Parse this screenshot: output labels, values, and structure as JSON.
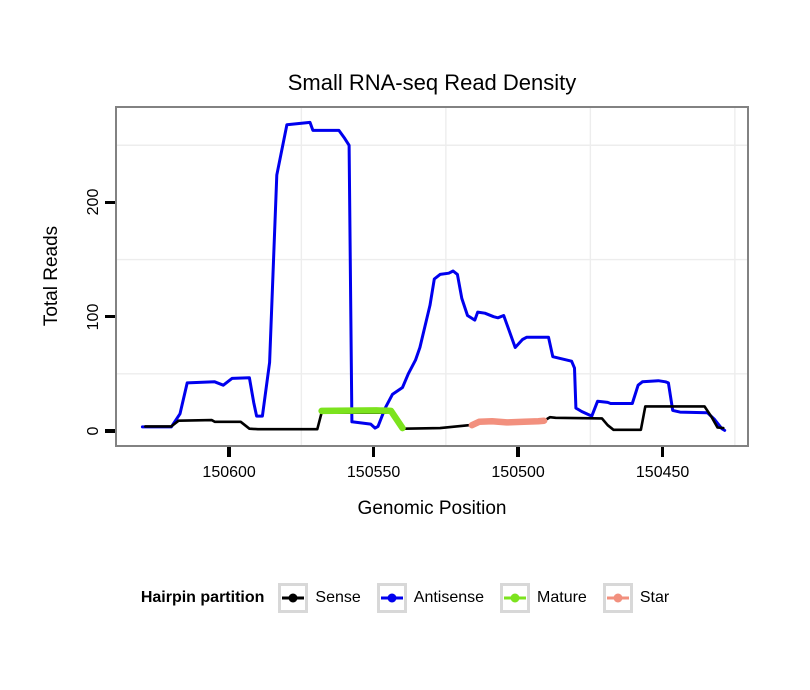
{
  "title": "Small RNA-seq Read Density",
  "axes": {
    "x_label": "Genomic Position",
    "y_label": "Total Reads"
  },
  "legend": {
    "title": "Hairpin partition",
    "items": [
      {
        "label": "Sense"
      },
      {
        "label": "Antisense"
      },
      {
        "label": "Mature"
      },
      {
        "label": "Star"
      }
    ]
  },
  "chart_data": {
    "type": "line",
    "title": "Small RNA-seq Read Density",
    "xlabel": "Genomic Position",
    "ylabel": "Total Reads",
    "legend_position": "bottom",
    "x_axis": {
      "reversed": true,
      "domain": [
        150638.8,
        150420.8
      ],
      "ticks": [
        150600,
        150550,
        150500,
        150450
      ],
      "tick_labels": [
        "150600",
        "150550",
        "150500",
        "150450"
      ]
    },
    "y_axis": {
      "domain": [
        -12.3,
        282.6
      ],
      "ticks": [
        0,
        100,
        200
      ],
      "tick_labels": [
        "0",
        "100",
        "200"
      ]
    },
    "grid": {
      "on": true,
      "minor_x": [
        150575,
        150525,
        150475,
        150425
      ],
      "minor_y": [
        50,
        150,
        250
      ],
      "minor_color": "#ededed"
    },
    "series": [
      {
        "name": "Antisense",
        "color": "#0000ee",
        "width": 3,
        "points": [
          [
            150630,
            3.5
          ],
          [
            150620,
            3.5
          ],
          [
            150617,
            15
          ],
          [
            150614.5,
            42
          ],
          [
            150605,
            43
          ],
          [
            150602,
            40
          ],
          [
            150599,
            46
          ],
          [
            150593,
            46.5
          ],
          [
            150591.5,
            25
          ],
          [
            150590.5,
            13
          ],
          [
            150588.5,
            13
          ],
          [
            150586,
            60
          ],
          [
            150583.5,
            224
          ],
          [
            150580,
            268
          ],
          [
            150572,
            270
          ],
          [
            150571,
            263
          ],
          [
            150562,
            263
          ],
          [
            150560,
            256
          ],
          [
            150558.5,
            250
          ],
          [
            150557.5,
            8
          ],
          [
            150551,
            6
          ],
          [
            150549.5,
            2.5
          ],
          [
            150548.5,
            4
          ],
          [
            150546,
            20
          ],
          [
            150543.5,
            32
          ],
          [
            150540,
            38
          ],
          [
            150538,
            50
          ],
          [
            150535.5,
            62
          ],
          [
            150534,
            73
          ],
          [
            150530.5,
            110
          ],
          [
            150529,
            133
          ],
          [
            150527,
            137
          ],
          [
            150524,
            138
          ],
          [
            150522.5,
            140
          ],
          [
            150521,
            137
          ],
          [
            150519.5,
            116
          ],
          [
            150517.5,
            101
          ],
          [
            150515,
            97
          ],
          [
            150514,
            104
          ],
          [
            150511.5,
            103
          ],
          [
            150508.5,
            100
          ],
          [
            150507,
            99
          ],
          [
            150505,
            101
          ],
          [
            150501,
            73
          ],
          [
            150498.5,
            80
          ],
          [
            150497,
            82
          ],
          [
            150489.5,
            82
          ],
          [
            150488,
            65
          ],
          [
            150481.5,
            61
          ],
          [
            150480.5,
            55
          ],
          [
            150480,
            20
          ],
          [
            150478,
            17
          ],
          [
            150474.5,
            13
          ],
          [
            150472.5,
            26
          ],
          [
            150469,
            25
          ],
          [
            150468,
            24
          ],
          [
            150460.5,
            24
          ],
          [
            150458.5,
            40
          ],
          [
            150457,
            43
          ],
          [
            150451.5,
            44
          ],
          [
            150449,
            43
          ],
          [
            150448,
            42
          ],
          [
            150446.5,
            18
          ],
          [
            150444,
            16.5
          ],
          [
            150434.5,
            16
          ],
          [
            150432,
            10
          ],
          [
            150429.5,
            2
          ],
          [
            150428.5,
            0.5
          ]
        ]
      },
      {
        "name": "Sense",
        "color": "#000000",
        "width": 2.6,
        "points": [
          [
            150629,
            4
          ],
          [
            150620,
            4
          ],
          [
            150617.5,
            9
          ],
          [
            150606,
            9.5
          ],
          [
            150605,
            8
          ],
          [
            150596,
            8
          ],
          [
            150593,
            2
          ],
          [
            150590,
            1.5
          ],
          [
            150569.5,
            1.5
          ],
          [
            150568,
            16
          ],
          [
            150544,
            16
          ],
          [
            150539.5,
            2
          ],
          [
            150527,
            2.5
          ],
          [
            150517,
            5
          ],
          [
            150513,
            7
          ],
          [
            150505,
            7.5
          ],
          [
            150498,
            7.5
          ],
          [
            150491,
            9
          ],
          [
            150489,
            12
          ],
          [
            150487,
            11.5
          ],
          [
            150471,
            11
          ],
          [
            150469,
            5
          ],
          [
            150467,
            1
          ],
          [
            150457.5,
            1
          ],
          [
            150456,
            21.5
          ],
          [
            150435.5,
            21.5
          ],
          [
            150433,
            12
          ],
          [
            150431,
            3
          ],
          [
            150429,
            2.5
          ]
        ]
      },
      {
        "name": "Mature",
        "color": "#7ce31e",
        "width": 6.5,
        "points": [
          [
            150568,
            17.5
          ],
          [
            150549,
            18
          ],
          [
            150544,
            17.5
          ],
          [
            150540,
            2.5
          ]
        ]
      },
      {
        "name": "Star",
        "color": "#f2907e",
        "width": 6.5,
        "points": [
          [
            150516,
            5
          ],
          [
            150513.5,
            8
          ],
          [
            150509,
            8.5
          ],
          [
            150504,
            7.5
          ],
          [
            150498,
            8
          ],
          [
            150493,
            8.5
          ],
          [
            150491,
            9
          ]
        ]
      }
    ]
  }
}
